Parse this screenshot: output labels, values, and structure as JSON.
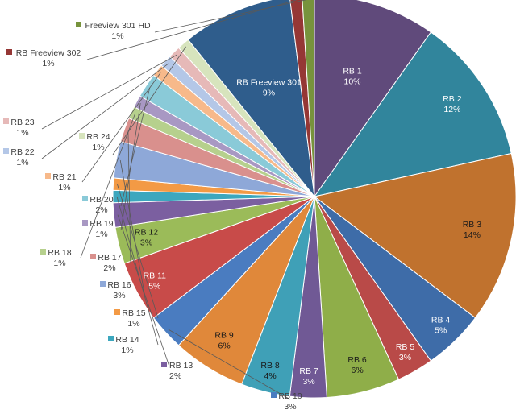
{
  "chart_data": {
    "type": "pie",
    "title": "",
    "legend": "none",
    "slices": [
      {
        "name": "RB 1",
        "value": 10,
        "label": "10%",
        "color": "#604A7B"
      },
      {
        "name": "RB 2",
        "value": 12,
        "label": "12%",
        "color": "#31859C"
      },
      {
        "name": "RB 3",
        "value": 14,
        "label": "14%",
        "color": "#C0722E"
      },
      {
        "name": "RB 4",
        "value": 5,
        "label": "5%",
        "color": "#3E6CA8"
      },
      {
        "name": "RB 5",
        "value": 3,
        "label": "3%",
        "color": "#B94A48"
      },
      {
        "name": "RB 6",
        "value": 6,
        "label": "6%",
        "color": "#8FAE49"
      },
      {
        "name": "RB 7",
        "value": 3,
        "label": "3%",
        "color": "#705995"
      },
      {
        "name": "RB 8",
        "value": 4,
        "label": "4%",
        "color": "#3FA0B7"
      },
      {
        "name": "RB 9",
        "value": 6,
        "label": "6%",
        "color": "#E0883A"
      },
      {
        "name": "RB 10",
        "value": 3,
        "label": "3%",
        "color": "#4A7CC0"
      },
      {
        "name": "RB 11",
        "value": 5,
        "label": "5%",
        "color": "#C84B49"
      },
      {
        "name": "RB 12",
        "value": 3,
        "label": "3%",
        "color": "#9BBB59"
      },
      {
        "name": "RB 13",
        "value": 2,
        "label": "2%",
        "color": "#7B5FA0"
      },
      {
        "name": "RB 14",
        "value": 1,
        "label": "1%",
        "color": "#3CA7BE"
      },
      {
        "name": "RB 15",
        "value": 1,
        "label": "1%",
        "color": "#F39A45"
      },
      {
        "name": "RB 16",
        "value": 3,
        "label": "3%",
        "color": "#8EA8D8"
      },
      {
        "name": "RB 17",
        "value": 2,
        "label": "2%",
        "color": "#D9908D"
      },
      {
        "name": "RB 18",
        "value": 1,
        "label": "1%",
        "color": "#B6D08D"
      },
      {
        "name": "RB 19",
        "value": 1,
        "label": "1%",
        "color": "#A898C3"
      },
      {
        "name": "RB 20",
        "value": 2,
        "label": "2%",
        "color": "#8ACAD8"
      },
      {
        "name": "RB 21",
        "value": 1,
        "label": "1%",
        "color": "#F7B98A"
      },
      {
        "name": "RB 22",
        "value": 1,
        "label": "1%",
        "color": "#B4C7E7"
      },
      {
        "name": "RB 23",
        "value": 1,
        "label": "1%",
        "color": "#E6B9B8"
      },
      {
        "name": "RB 24",
        "value": 1,
        "label": "1%",
        "color": "#D7E4BD"
      },
      {
        "name": "RB Freeview 301",
        "value": 9,
        "label": "9%",
        "color": "#2F5D8C"
      },
      {
        "name": "RB Freeview 302",
        "value": 1,
        "label": "1%",
        "color": "#953735"
      },
      {
        "name": "Freeview 301 HD",
        "value": 1,
        "label": "1%",
        "color": "#77933C"
      }
    ]
  }
}
